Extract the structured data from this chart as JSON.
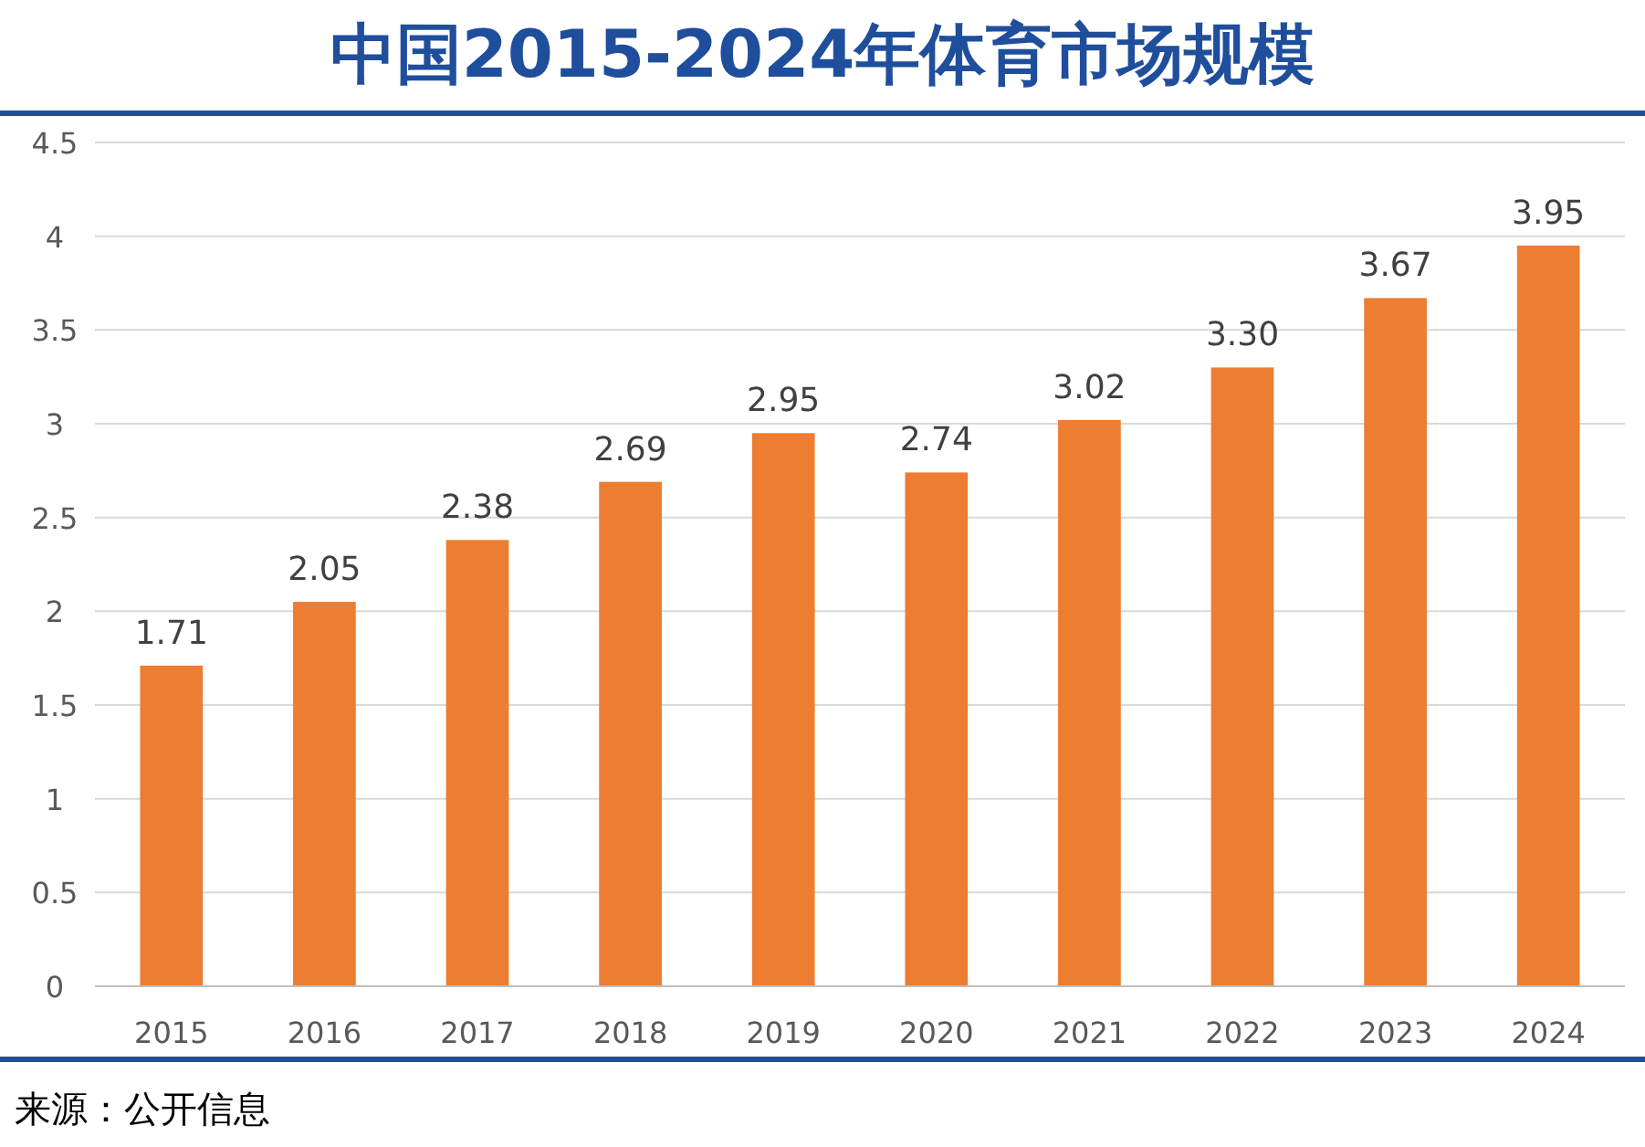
{
  "chart_data": {
    "type": "bar",
    "title": "中国2015-2024年体育市场规模",
    "categories": [
      "2015",
      "2016",
      "2017",
      "2018",
      "2019",
      "2020",
      "2021",
      "2022",
      "2023",
      "2024"
    ],
    "values": [
      1.71,
      2.05,
      2.38,
      2.69,
      2.95,
      2.74,
      3.02,
      3.3,
      3.67,
      3.95
    ],
    "value_labels": [
      "1.71",
      "2.05",
      "2.38",
      "2.69",
      "2.95",
      "2.74",
      "3.02",
      "3.30",
      "3.67",
      "3.95"
    ],
    "color": "#ed7d31",
    "ylim": [
      0,
      4.5
    ],
    "yticks": [
      0,
      0.5,
      1,
      1.5,
      2,
      2.5,
      3,
      3.5,
      4,
      4.5
    ],
    "grid": "y",
    "annotations": [
      "来源：公开信息"
    ]
  }
}
